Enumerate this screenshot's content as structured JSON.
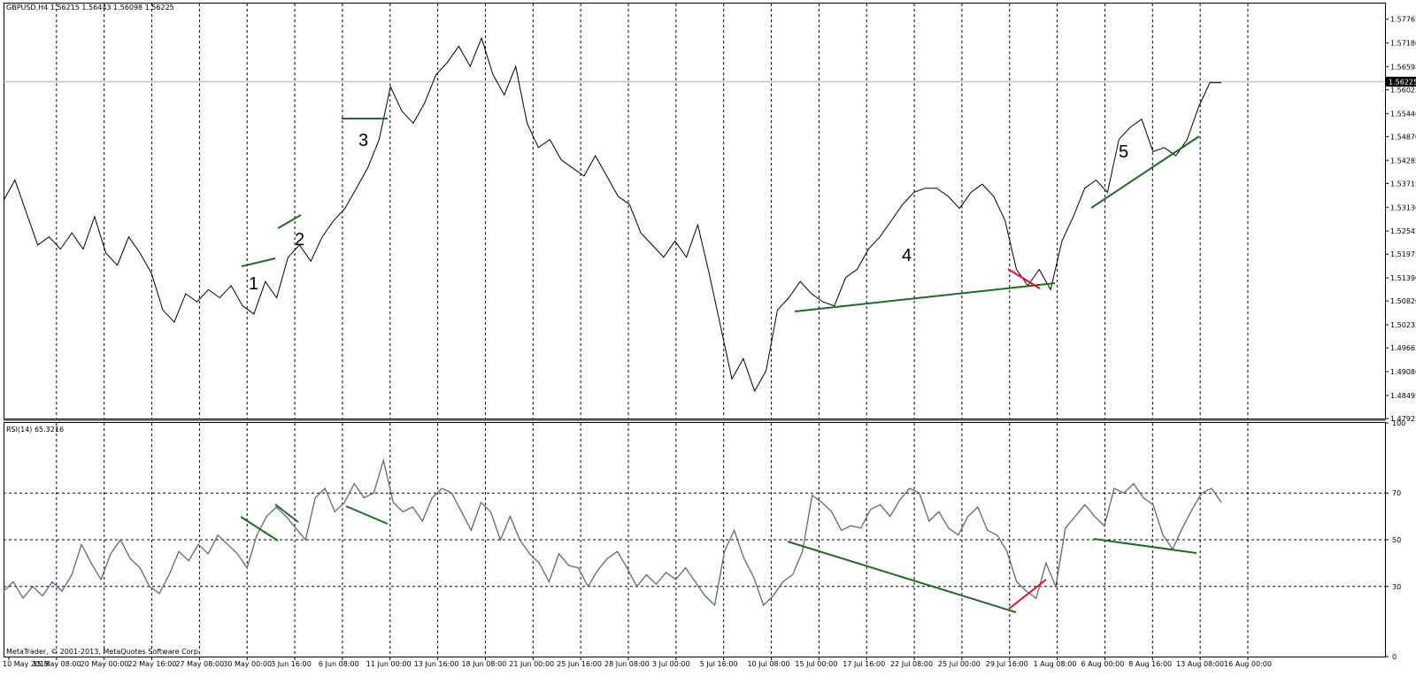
{
  "main_title": "GBPUSD,H4  1.56215 1.56443 1.56098 1.56225",
  "rsi_title": "RSI(14) 65.3216",
  "copyright": "MetaTrader, © 2001-2013, MetaQuotes Software Corp.",
  "price_badge": "1.56225",
  "colors": {
    "price_line": "#000000",
    "rsi_line": "#5a6a82",
    "trend_green": "#1f6b1f",
    "trend_red": "#e01030",
    "grid": "#000000"
  },
  "chart_data": [
    {
      "type": "line",
      "title": "GBPUSD,H4",
      "ylim": [
        1.47925,
        1.5815
      ],
      "y_ticks": [
        "1.57765",
        "1.57180",
        "1.56595",
        "1.56025",
        "1.55440",
        "1.54870",
        "1.54285",
        "1.53715",
        "1.53130",
        "1.52545",
        "1.51975",
        "1.51390",
        "1.50820",
        "1.50235",
        "1.49665",
        "1.49080",
        "1.48495",
        "1.47925"
      ],
      "current_price": 1.56225,
      "series": [
        {
          "values": [
            1.533,
            1.538,
            1.53,
            1.522,
            1.524,
            1.521,
            1.525,
            1.521,
            1.529,
            1.52,
            1.517,
            1.524,
            1.52,
            1.515,
            1.506,
            1.503,
            1.51,
            1.508,
            1.511,
            1.509,
            1.512,
            1.507,
            1.505,
            1.513,
            1.509,
            1.519,
            1.522,
            1.518,
            1.524,
            1.528,
            1.531,
            1.536,
            1.541,
            1.548,
            1.561,
            1.555,
            1.552,
            1.557,
            1.564,
            1.567,
            1.571,
            1.566,
            1.573,
            1.564,
            1.559,
            1.566,
            1.552,
            1.546,
            1.548,
            1.543,
            1.541,
            1.539,
            1.544,
            1.539,
            1.534,
            1.532,
            1.525,
            1.522,
            1.519,
            1.523,
            1.519,
            1.527,
            1.515,
            1.502,
            1.489,
            1.494,
            1.486,
            1.491,
            1.506,
            1.509,
            1.513,
            1.51,
            1.508,
            1.507,
            1.514,
            1.516,
            1.521,
            1.524,
            1.528,
            1.532,
            1.535,
            1.536,
            1.536,
            1.534,
            1.531,
            1.535,
            1.537,
            1.534,
            1.528,
            1.516,
            1.512,
            1.516,
            1.511,
            1.523,
            1.529,
            1.536,
            1.538,
            1.535,
            1.548,
            1.551,
            1.553,
            1.545,
            1.546,
            1.544,
            1.548,
            1.556,
            1.562,
            1.562
          ]
        }
      ]
    },
    {
      "type": "line",
      "title": "RSI(14)",
      "ylim": [
        0,
        100
      ],
      "y_ticks": [
        "100",
        "70",
        "50",
        "30",
        "0"
      ],
      "current_value": 65.3216,
      "series": [
        {
          "values": [
            28,
            32,
            25,
            30,
            26,
            32,
            28,
            35,
            48,
            40,
            33,
            44,
            50,
            42,
            38,
            30,
            27,
            35,
            45,
            41,
            48,
            44,
            52,
            48,
            44,
            38,
            52,
            60,
            64,
            60,
            55,
            50,
            68,
            72,
            62,
            66,
            74,
            68,
            70,
            84,
            66,
            62,
            64,
            58,
            68,
            72,
            70,
            62,
            54,
            66,
            62,
            50,
            60,
            50,
            44,
            40,
            32,
            44,
            39,
            38,
            30,
            37,
            42,
            45,
            38,
            30,
            35,
            31,
            36,
            33,
            38,
            32,
            26,
            22,
            45,
            54,
            42,
            34,
            22,
            26,
            32,
            35,
            45,
            69,
            66,
            62,
            54,
            56,
            55,
            63,
            65,
            60,
            67,
            72,
            70,
            58,
            62,
            55,
            52,
            60,
            64,
            54,
            52,
            45,
            32,
            28,
            25,
            40,
            30,
            55,
            60,
            65,
            60,
            56,
            72,
            70,
            74,
            68,
            65,
            52,
            46,
            55,
            63,
            70,
            72,
            66
          ]
        }
      ]
    }
  ],
  "x_labels": [
    "10 May 2013",
    "15 May 08:00",
    "20 May 00:00",
    "22 May 16:00",
    "27 May 08:00",
    "30 May 00:00",
    "3 Jun 16:00",
    "6 Jun 08:00",
    "11 Jun 00:00",
    "13 Jun 16:00",
    "18 Jun 08:00",
    "21 Jun 00:00",
    "25 Jun 16:00",
    "28 Jun 08:00",
    "3 Jul 00:00",
    "5 Jul 16:00",
    "10 Jul 08:00",
    "15 Jul 00:00",
    "17 Jul 16:00",
    "22 Jul 08:00",
    "25 Jul 00:00",
    "29 Jul 16:00",
    "1 Aug 08:00",
    "6 Aug 00:00",
    "8 Aug 16:00",
    "13 Aug 08:00",
    "16 Aug 00:00"
  ],
  "annotations": [
    "1",
    "2",
    "3",
    "4",
    "5"
  ]
}
